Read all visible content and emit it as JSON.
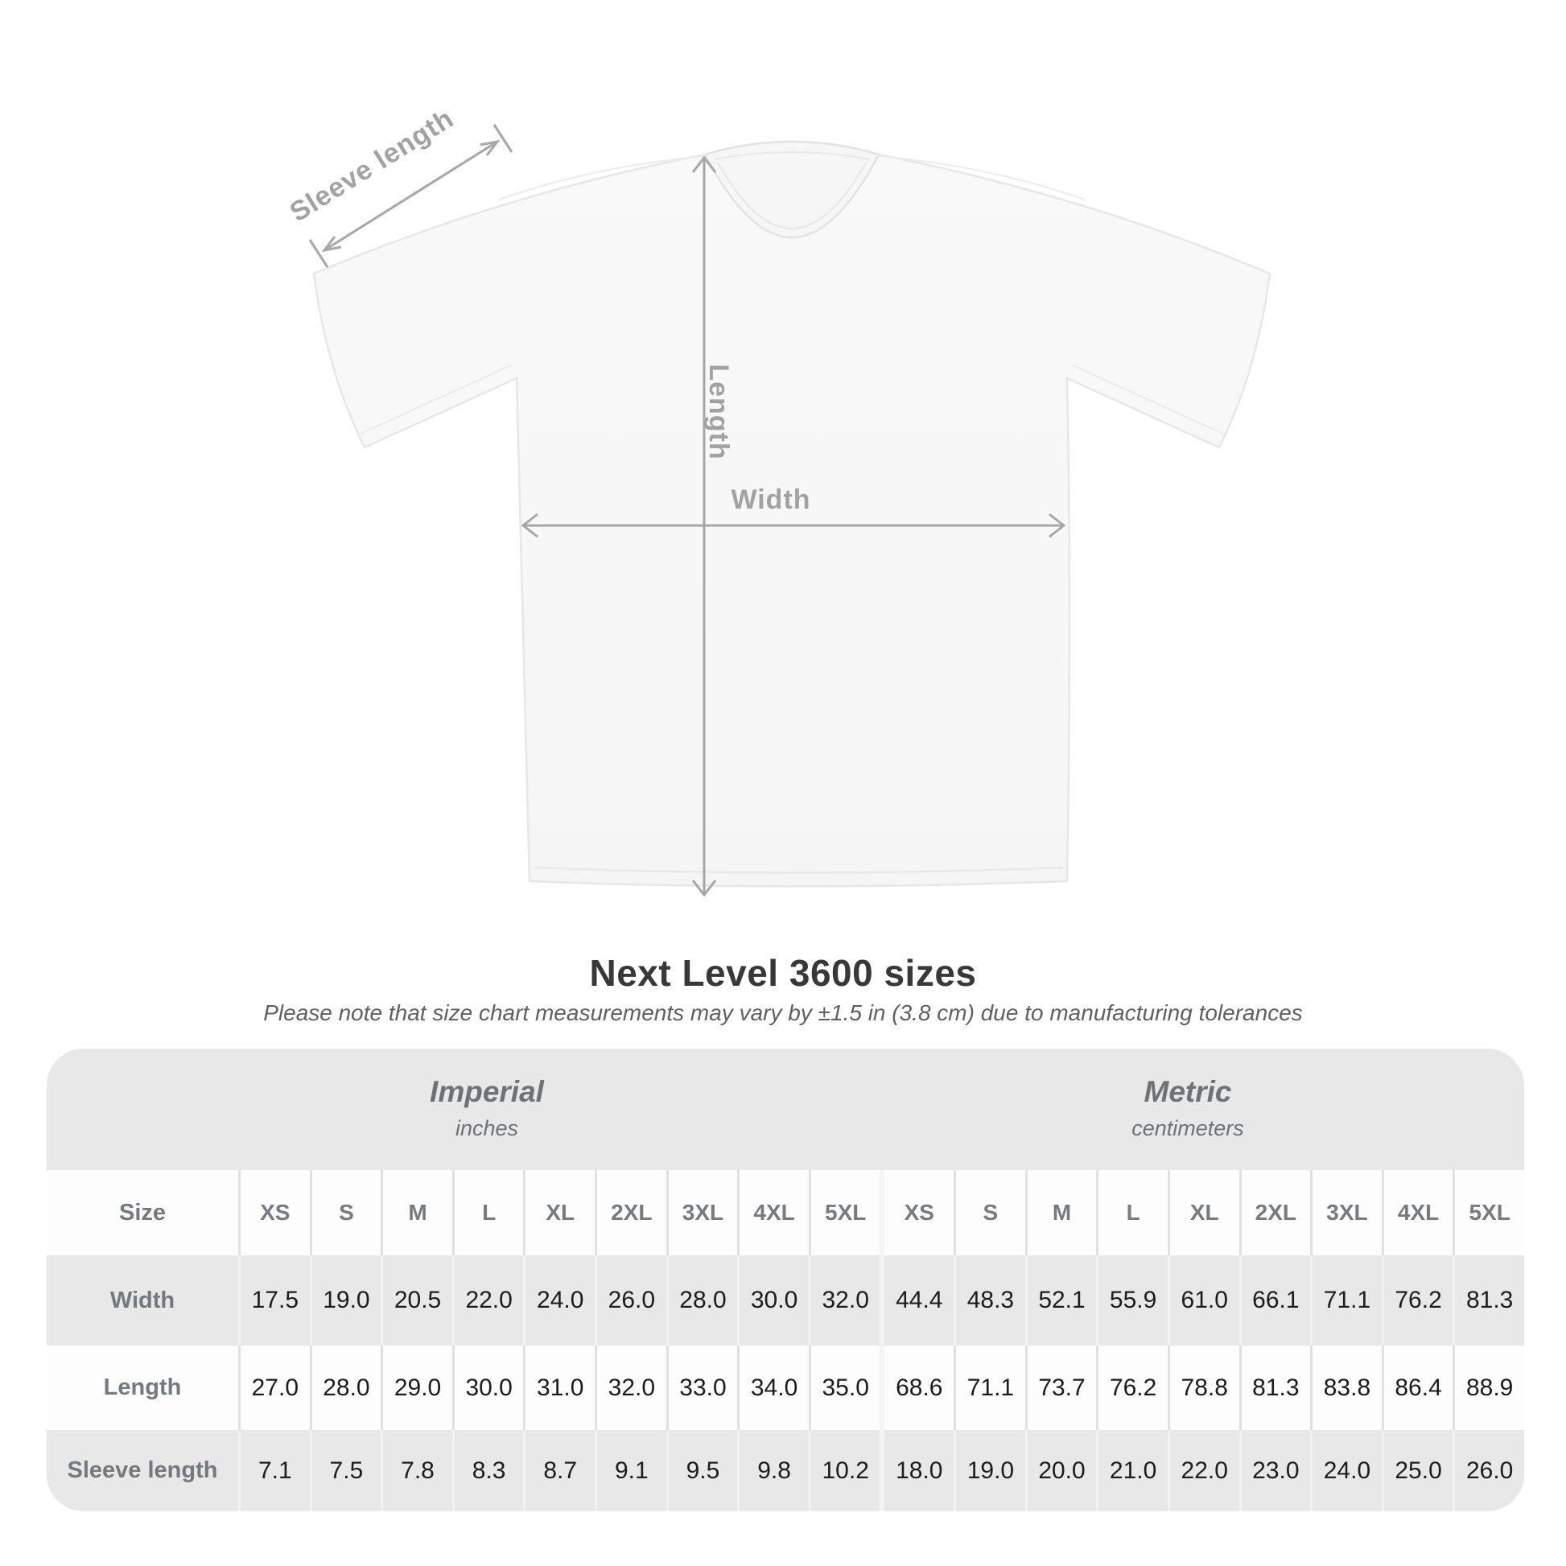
{
  "page": {
    "title": "Next Level 3600 sizes",
    "subtitle": "Please note that size chart measurements may vary by ±1.5 in (3.8 cm) due to manufacturing tolerances"
  },
  "diagram": {
    "sleeve_label": "Sleeve length",
    "length_label": "Length",
    "width_label": "Width"
  },
  "table": {
    "unit_groups": [
      {
        "name": "Imperial",
        "unit": "inches"
      },
      {
        "name": "Metric",
        "unit": "centimeters"
      }
    ],
    "corner_label": "Size",
    "size_columns": [
      "XS",
      "S",
      "M",
      "L",
      "XL",
      "2XL",
      "3XL",
      "4XL",
      "5XL",
      "XS",
      "S",
      "M",
      "L",
      "XL",
      "2XL",
      "3XL",
      "4XL",
      "5XL"
    ],
    "rows": [
      {
        "label": "Width",
        "values": [
          "17.5",
          "19.0",
          "20.5",
          "22.0",
          "24.0",
          "26.0",
          "28.0",
          "30.0",
          "32.0",
          "44.4",
          "48.3",
          "52.1",
          "55.9",
          "61.0",
          "66.1",
          "71.1",
          "76.2",
          "81.3"
        ]
      },
      {
        "label": "Length",
        "values": [
          "27.0",
          "28.0",
          "29.0",
          "30.0",
          "31.0",
          "32.0",
          "33.0",
          "34.0",
          "35.0",
          "68.6",
          "71.1",
          "73.7",
          "76.2",
          "78.8",
          "81.3",
          "83.8",
          "86.4",
          "88.9"
        ]
      },
      {
        "label": "Sleeve length",
        "values": [
          "7.1",
          "7.5",
          "7.8",
          "8.3",
          "8.7",
          "9.1",
          "9.5",
          "9.8",
          "10.2",
          "18.0",
          "19.0",
          "20.0",
          "21.0",
          "22.0",
          "23.0",
          "24.0",
          "25.0",
          "26.0"
        ]
      }
    ]
  },
  "colors": {
    "dimension_gray": "#a7a7a7",
    "table_bg": "#e8e8e8",
    "row_white": "#fdfdfd",
    "label_text": "#75797e",
    "value_text": "#1c1c1c"
  }
}
